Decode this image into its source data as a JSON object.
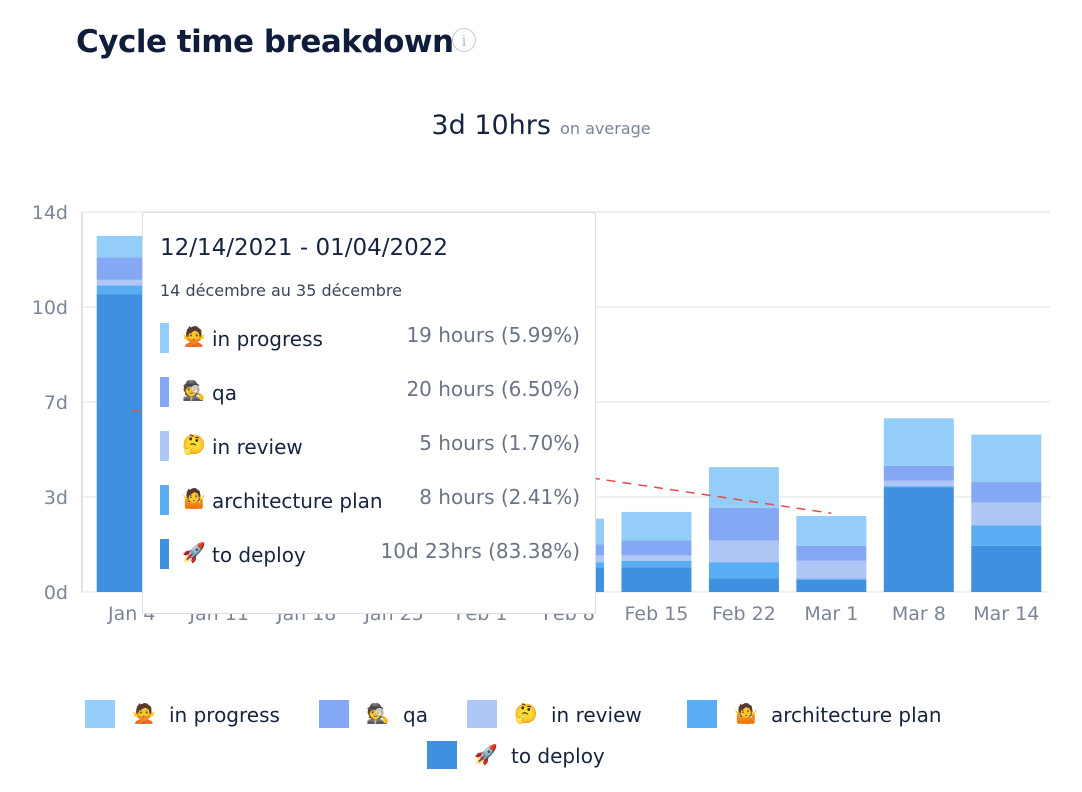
{
  "header": {
    "title": "Cycle time breakdown",
    "info_icon": "info-circle-icon"
  },
  "summary": {
    "value": "3d 10hrs",
    "label": "on average"
  },
  "colors": {
    "in_progress": "#94cdf7",
    "qa": "#84a8f3",
    "in_review": "#afc7f7",
    "architecture_plan": "#59adf2",
    "to_deploy": "#3f90de",
    "trend": "#e44c4c",
    "grid": "#e8ebf0",
    "axis_text": "#7b8596"
  },
  "chart_data": {
    "type": "bar",
    "stacked": true,
    "categories": [
      "Jan 4",
      "Jan 11",
      "Jan 18",
      "Jan 25",
      "Feb 1",
      "Feb 8",
      "Feb 15",
      "Feb 22",
      "Mar 1",
      "Mar 8",
      "Mar 14"
    ],
    "y_ticks": [
      "14d",
      "10d",
      "7d",
      "3d",
      "0d"
    ],
    "ylim": [
      0,
      14
    ],
    "grid": true,
    "legend_position": "bottom",
    "series": [
      {
        "key": "to_deploy",
        "name": "to deploy",
        "emoji": "🚀",
        "values": [
          10.96,
          0,
          0,
          0,
          0,
          0.9,
          0.9,
          0.5,
          0.45,
          3.85,
          1.7
        ]
      },
      {
        "key": "architecture_plan",
        "name": "architecture plan",
        "emoji": "🤷",
        "values": [
          0.33,
          0,
          0,
          0,
          0,
          0.2,
          0.25,
          0.6,
          0.05,
          0.05,
          0.75
        ]
      },
      {
        "key": "in_review",
        "name": "in review",
        "emoji": "🤔",
        "values": [
          0.21,
          0,
          0,
          0,
          0,
          0.25,
          0.2,
          0.8,
          0.65,
          0.2,
          0.85
        ]
      },
      {
        "key": "qa",
        "name": "qa",
        "emoji": "🕵",
        "values": [
          0.83,
          0,
          0,
          0,
          0,
          0.4,
          0.55,
          1.2,
          0.55,
          0.55,
          0.75
        ]
      },
      {
        "key": "in_progress",
        "name": "in progress",
        "emoji": "🙅",
        "values": [
          0.79,
          0,
          0,
          0,
          0,
          0.95,
          1.05,
          1.5,
          1.1,
          1.75,
          1.75
        ]
      }
    ],
    "trend_line": {
      "name": "average trend",
      "start": 6.7,
      "end": 2.9
    }
  },
  "tooltip": {
    "range": "12/14/2021 - 01/04/2022",
    "subtitle": "14 décembre au 35 décembre",
    "rows": [
      {
        "key": "in_progress",
        "emoji": "🙅",
        "label": "in progress",
        "value": "19 hours (5.99%)"
      },
      {
        "key": "qa",
        "emoji": "🕵",
        "label": "qa",
        "value": "20 hours (6.50%)"
      },
      {
        "key": "in_review",
        "emoji": "🤔",
        "label": "in review",
        "value": "5 hours (1.70%)"
      },
      {
        "key": "architecture_plan",
        "emoji": "🤷",
        "label": "architecture plan",
        "value": "8 hours (2.41%)"
      },
      {
        "key": "to_deploy",
        "emoji": "🚀",
        "label": "to deploy",
        "value": "10d 23hrs (83.38%)"
      }
    ]
  },
  "legend": [
    {
      "key": "in_progress",
      "emoji": "🙅",
      "label": "in progress"
    },
    {
      "key": "qa",
      "emoji": "🕵",
      "label": "qa"
    },
    {
      "key": "in_review",
      "emoji": "🤔",
      "label": "in review"
    },
    {
      "key": "architecture_plan",
      "emoji": "🤷",
      "label": "architecture plan"
    },
    {
      "key": "to_deploy",
      "emoji": "🚀",
      "label": "to deploy"
    }
  ]
}
